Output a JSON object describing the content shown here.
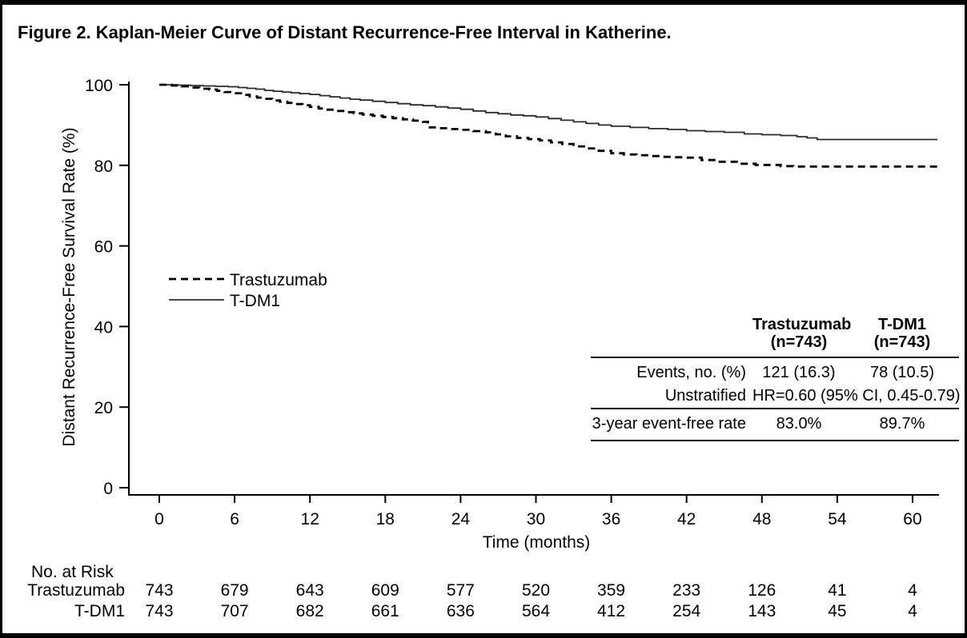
{
  "figure": {
    "title": "Figure 2. Kaplan-Meier Curve of Distant Recurrence-Free Interval in Katherine."
  },
  "chart_data": {
    "type": "line",
    "subtype": "kaplan-meier-step",
    "title": "Figure 2. Kaplan-Meier Curve of Distant Recurrence-Free Interval in Katherine.",
    "xlabel": "Time (months)",
    "ylabel": "Distant Recurrence-Free Survival Rate (%)",
    "xlim": [
      0,
      62
    ],
    "ylim": [
      0,
      100
    ],
    "x_ticks": [
      0,
      6,
      12,
      18,
      24,
      30,
      36,
      42,
      48,
      54,
      60
    ],
    "y_ticks": [
      0,
      20,
      40,
      60,
      80,
      100
    ],
    "grid": false,
    "legend": {
      "position": "left-middle",
      "entries": [
        {
          "label": "Trastuzumab",
          "style": "dashed"
        },
        {
          "label": "T-DM1",
          "style": "solid"
        }
      ]
    },
    "series": [
      {
        "name": "Trastuzumab",
        "line_style": "dashed",
        "color": "#000000",
        "points": [
          [
            0,
            100
          ],
          [
            1,
            99.8
          ],
          [
            1.8,
            99.6
          ],
          [
            2.5,
            99.3
          ],
          [
            3.2,
            99.0
          ],
          [
            4,
            98.8
          ],
          [
            4.6,
            98.5
          ],
          [
            5.2,
            98.2
          ],
          [
            6,
            97.9
          ],
          [
            6.6,
            97.5
          ],
          [
            7.2,
            97.1
          ],
          [
            7.8,
            96.8
          ],
          [
            8.4,
            96.5
          ],
          [
            9,
            96.1
          ],
          [
            9.6,
            95.8
          ],
          [
            10.2,
            95.5
          ],
          [
            10.8,
            95.2
          ],
          [
            11.4,
            94.9
          ],
          [
            12,
            94.5
          ],
          [
            12.7,
            94.1
          ],
          [
            13.4,
            93.8
          ],
          [
            14.1,
            93.5
          ],
          [
            14.8,
            93.2
          ],
          [
            15.5,
            92.9
          ],
          [
            16.2,
            92.6
          ],
          [
            17,
            92.3
          ],
          [
            17.8,
            92.0
          ],
          [
            18.6,
            91.7
          ],
          [
            19.4,
            91.4
          ],
          [
            20.2,
            91.1
          ],
          [
            21,
            90.8
          ],
          [
            21.4,
            89.4
          ],
          [
            22.3,
            89.2
          ],
          [
            23.2,
            89.0
          ],
          [
            24,
            88.8
          ],
          [
            25,
            88.5
          ],
          [
            26,
            88.2
          ],
          [
            26.8,
            87.7
          ],
          [
            27.6,
            87.2
          ],
          [
            28.5,
            86.8
          ],
          [
            29.4,
            86.5
          ],
          [
            30.3,
            86.2
          ],
          [
            31.2,
            85.7
          ],
          [
            32.1,
            85.3
          ],
          [
            33,
            84.7
          ],
          [
            34,
            84.2
          ],
          [
            35,
            83.6
          ],
          [
            36,
            83.0
          ],
          [
            37,
            82.7
          ],
          [
            38,
            82.5
          ],
          [
            39,
            82.3
          ],
          [
            40,
            82.1
          ],
          [
            41,
            82.0
          ],
          [
            42,
            81.9
          ],
          [
            43.2,
            81.3
          ],
          [
            44.5,
            80.9
          ],
          [
            46,
            80.4
          ],
          [
            47.5,
            80.1
          ],
          [
            49.5,
            79.8
          ],
          [
            50.5,
            79.7
          ],
          [
            62,
            79.7
          ]
        ]
      },
      {
        "name": "T-DM1",
        "line_style": "solid",
        "color": "#2b2b2b",
        "points": [
          [
            0,
            100
          ],
          [
            1.5,
            99.9
          ],
          [
            2.5,
            99.8
          ],
          [
            3.5,
            99.7
          ],
          [
            4.5,
            99.6
          ],
          [
            5.5,
            99.5
          ],
          [
            6.3,
            99.3
          ],
          [
            7,
            99.1
          ],
          [
            7.7,
            98.9
          ],
          [
            8.4,
            98.6
          ],
          [
            9.1,
            98.4
          ],
          [
            9.8,
            98.2
          ],
          [
            10.5,
            98.0
          ],
          [
            11.2,
            97.8
          ],
          [
            12,
            97.6
          ],
          [
            12.8,
            97.3
          ],
          [
            13.6,
            97.0
          ],
          [
            14.4,
            96.7
          ],
          [
            15.2,
            96.4
          ],
          [
            16,
            96.2
          ],
          [
            17,
            95.9
          ],
          [
            18,
            95.6
          ],
          [
            19,
            95.3
          ],
          [
            20,
            95.0
          ],
          [
            21,
            94.8
          ],
          [
            22,
            94.5
          ],
          [
            23,
            94.2
          ],
          [
            24,
            93.9
          ],
          [
            25,
            93.5
          ],
          [
            26,
            93.1
          ],
          [
            27,
            92.8
          ],
          [
            28,
            92.5
          ],
          [
            29,
            92.3
          ],
          [
            30,
            92.0
          ],
          [
            31,
            91.6
          ],
          [
            32,
            91.2
          ],
          [
            33,
            90.8
          ],
          [
            34,
            90.4
          ],
          [
            35,
            90.0
          ],
          [
            36,
            89.7
          ],
          [
            37.5,
            89.4
          ],
          [
            39,
            89.1
          ],
          [
            40.5,
            88.9
          ],
          [
            42,
            88.6
          ],
          [
            43.5,
            88.4
          ],
          [
            45,
            88.2
          ],
          [
            46.6,
            87.8
          ],
          [
            48,
            87.6
          ],
          [
            49.5,
            87.4
          ],
          [
            50.8,
            87.1
          ],
          [
            51.6,
            86.8
          ],
          [
            52.4,
            86.4
          ],
          [
            62,
            86.4
          ]
        ]
      }
    ]
  },
  "inset_table": {
    "col_headers": [
      {
        "line1": "Trastuzumab",
        "line2": "(n=743)"
      },
      {
        "line1": "T-DM1",
        "line2": "(n=743)"
      }
    ],
    "rows": [
      {
        "label": "Events, no. (%)",
        "col1": "121 (16.3)",
        "col2": "78 (10.5)"
      },
      {
        "label": "Unstratified",
        "value": "HR=0.60  (95% CI, 0.45-0.79)"
      },
      {
        "label": "3-year event-free rate",
        "col1": "83.0%",
        "col2": "89.7%"
      }
    ]
  },
  "risk_table": {
    "title": "No. at Risk",
    "rows": [
      {
        "label": "Trastuzumab",
        "counts": [
          743,
          679,
          643,
          609,
          577,
          520,
          359,
          233,
          126,
          41,
          4
        ]
      },
      {
        "label": "T-DM1",
        "counts": [
          743,
          707,
          682,
          661,
          636,
          564,
          412,
          254,
          143,
          45,
          4
        ]
      }
    ]
  }
}
